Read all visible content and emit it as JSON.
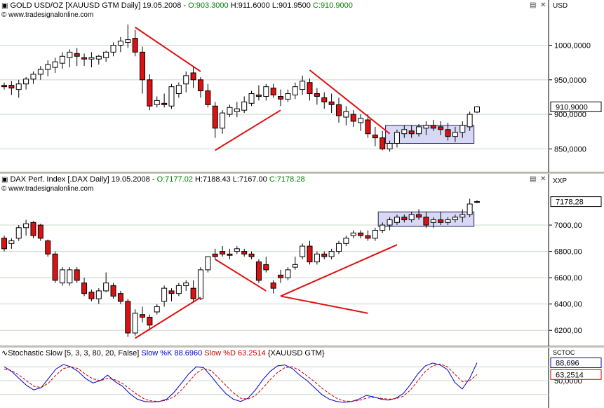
{
  "gold_pane": {
    "title_symbol": "GOLD USD/OZ [XAUUSD GTM  Daily] 19.05.2008 - ",
    "open": "O:903.3000",
    "hlc": " H:911.6000 L:901.9500 ",
    "close": "C:910.9000",
    "source": "© www.tradesignalonline.com",
    "axis_unit": "USD",
    "y_ticks": [
      "1000,0000",
      "950,0000",
      "900,0000",
      "850,0000"
    ],
    "last_price": "910,9000"
  },
  "dax_pane": {
    "title_symbol": "DAX Perf. Index [.DAX  Daily] 19.05.2008 - ",
    "open": "O:7177.02",
    "hlc": " H:7188.43 L:7167.00 ",
    "close": "C:7178.28",
    "source": "© www.tradesignalonline.com",
    "axis_unit": "XXP",
    "y_ticks": [
      "7000,00",
      "6800,00",
      "6600,00",
      "6400,00",
      "6200,00"
    ],
    "last_price": "7178,28"
  },
  "stoch_pane": {
    "name": "Stochastic Slow [5, 3, 3, 80, 20, False]",
    "k_label": "Slow %K 88.6960",
    "d_label": "Slow %D 63.2514",
    "symbol": "{XAUUSD GTM}",
    "axis_unit": "SCTOC",
    "y_tick": "50,0000",
    "k_value": "88,696",
    "d_value": "63,2514",
    "k_color": "#0000cc",
    "d_color": "#cc0000"
  },
  "chart_data": [
    {
      "type": "candlestick",
      "title": "GOLD USD/OZ [XAUUSD GTM  Daily] 19.05.2008",
      "ylim": [
        820,
        1035
      ],
      "ohlc": [
        [
          942,
          946,
          936,
          940
        ],
        [
          942,
          948,
          928,
          938
        ],
        [
          936,
          950,
          924,
          944
        ],
        [
          944,
          954,
          936,
          951
        ],
        [
          951,
          962,
          944,
          958
        ],
        [
          958,
          970,
          950,
          965
        ],
        [
          965,
          978,
          955,
          972
        ],
        [
          968,
          982,
          960,
          976
        ],
        [
          974,
          990,
          966,
          984
        ],
        [
          982,
          994,
          968,
          990
        ],
        [
          988,
          996,
          970,
          984
        ],
        [
          982,
          988,
          970,
          980
        ],
        [
          980,
          990,
          968,
          982
        ],
        [
          980,
          986,
          972,
          984
        ],
        [
          982,
          992,
          976,
          990
        ],
        [
          990,
          1004,
          984,
          1000
        ],
        [
          1000,
          1012,
          990,
          1006
        ],
        [
          1004,
          1030,
          996,
          1008
        ],
        [
          1010,
          1022,
          984,
          990
        ],
        [
          990,
          998,
          930,
          950
        ],
        [
          950,
          958,
          906,
          912
        ],
        [
          914,
          926,
          910,
          920
        ],
        [
          916,
          930,
          910,
          914
        ],
        [
          912,
          944,
          908,
          940
        ],
        [
          930,
          946,
          924,
          942
        ],
        [
          944,
          962,
          932,
          956
        ],
        [
          960,
          968,
          938,
          950
        ],
        [
          950,
          954,
          924,
          934
        ],
        [
          934,
          944,
          910,
          914
        ],
        [
          912,
          918,
          866,
          880
        ],
        [
          880,
          906,
          872,
          902
        ],
        [
          900,
          914,
          896,
          910
        ],
        [
          904,
          918,
          896,
          908
        ],
        [
          906,
          926,
          902,
          918
        ],
        [
          916,
          934,
          912,
          930
        ],
        [
          928,
          942,
          920,
          926
        ],
        [
          926,
          944,
          920,
          940
        ],
        [
          938,
          944,
          924,
          928
        ],
        [
          926,
          936,
          912,
          922
        ],
        [
          922,
          936,
          918,
          930
        ],
        [
          928,
          946,
          922,
          940
        ],
        [
          936,
          956,
          928,
          948
        ],
        [
          946,
          952,
          920,
          930
        ],
        [
          930,
          938,
          914,
          926
        ],
        [
          924,
          932,
          908,
          918
        ],
        [
          918,
          930,
          902,
          914
        ],
        [
          914,
          924,
          888,
          898
        ],
        [
          896,
          912,
          884,
          904
        ],
        [
          900,
          906,
          882,
          890
        ],
        [
          888,
          900,
          876,
          894
        ],
        [
          892,
          900,
          866,
          872
        ],
        [
          870,
          882,
          854,
          866
        ],
        [
          866,
          876,
          848,
          850
        ],
        [
          850,
          862,
          846,
          858
        ],
        [
          858,
          878,
          852,
          874
        ],
        [
          872,
          884,
          866,
          878
        ],
        [
          876,
          884,
          866,
          872
        ],
        [
          872,
          886,
          868,
          882
        ],
        [
          880,
          890,
          870,
          884
        ],
        [
          884,
          892,
          876,
          880
        ],
        [
          882,
          890,
          870,
          878
        ],
        [
          878,
          888,
          862,
          868
        ],
        [
          868,
          882,
          860,
          874
        ],
        [
          874,
          890,
          866,
          884
        ],
        [
          882,
          904,
          876,
          900
        ],
        [
          903.3,
          911.6,
          901.95,
          910.9
        ]
      ],
      "trendlines": "red",
      "range_box": [
        858,
        884
      ]
    },
    {
      "type": "candlestick",
      "title": "DAX Perf. Index [.DAX  Daily] 19.05.2008",
      "ylim": [
        6100,
        7240
      ],
      "ohlc": [
        [
          6900,
          6920,
          6800,
          6820
        ],
        [
          6860,
          6900,
          6820,
          6880
        ],
        [
          6900,
          7000,
          6880,
          6980
        ],
        [
          6980,
          7040,
          6920,
          7010
        ],
        [
          7020,
          7030,
          6900,
          6920
        ],
        [
          7000,
          7010,
          6880,
          6900
        ],
        [
          6880,
          6890,
          6760,
          6780
        ],
        [
          6780,
          6800,
          6560,
          6580
        ],
        [
          6560,
          6680,
          6540,
          6660
        ],
        [
          6560,
          6680,
          6540,
          6660
        ],
        [
          6660,
          6680,
          6560,
          6580
        ],
        [
          6560,
          6600,
          6460,
          6480
        ],
        [
          6490,
          6510,
          6420,
          6440
        ],
        [
          6440,
          6520,
          6400,
          6500
        ],
        [
          6500,
          6640,
          6490,
          6560
        ],
        [
          6540,
          6560,
          6440,
          6460
        ],
        [
          6480,
          6500,
          6400,
          6420
        ],
        [
          6420,
          6440,
          6150,
          6180
        ],
        [
          6180,
          6360,
          6160,
          6330
        ],
        [
          6320,
          6380,
          6260,
          6300
        ],
        [
          6300,
          6320,
          6200,
          6240
        ],
        [
          6340,
          6400,
          6320,
          6380
        ],
        [
          6420,
          6540,
          6380,
          6520
        ],
        [
          6500,
          6520,
          6420,
          6480
        ],
        [
          6480,
          6560,
          6460,
          6540
        ],
        [
          6540,
          6580,
          6500,
          6560
        ],
        [
          6520,
          6580,
          6420,
          6440
        ],
        [
          6440,
          6680,
          6430,
          6660
        ],
        [
          6660,
          6760,
          6640,
          6760
        ],
        [
          6780,
          6820,
          6740,
          6760
        ],
        [
          6800,
          6840,
          6760,
          6780
        ],
        [
          6780,
          6820,
          6740,
          6770
        ],
        [
          6800,
          6840,
          6780,
          6820
        ],
        [
          6800,
          6820,
          6760,
          6780
        ],
        [
          6780,
          6800,
          6740,
          6760
        ],
        [
          6720,
          6740,
          6560,
          6580
        ],
        [
          6700,
          6760,
          6640,
          6660
        ],
        [
          6560,
          6580,
          6480,
          6520
        ],
        [
          6620,
          6660,
          6560,
          6600
        ],
        [
          6600,
          6680,
          6580,
          6660
        ],
        [
          6680,
          6760,
          6660,
          6700
        ],
        [
          6760,
          6860,
          6740,
          6840
        ],
        [
          6840,
          6880,
          6700,
          6720
        ],
        [
          6720,
          6800,
          6700,
          6780
        ],
        [
          6780,
          6800,
          6740,
          6760
        ],
        [
          6760,
          6820,
          6740,
          6800
        ],
        [
          6800,
          6880,
          6780,
          6860
        ],
        [
          6860,
          6920,
          6840,
          6900
        ],
        [
          6920,
          6960,
          6900,
          6940
        ],
        [
          6940,
          6960,
          6900,
          6920
        ],
        [
          6920,
          6960,
          6880,
          6900
        ],
        [
          6900,
          6980,
          6880,
          6960
        ],
        [
          6960,
          7020,
          6940,
          7000
        ],
        [
          7000,
          7060,
          6960,
          7040
        ],
        [
          7020,
          7080,
          7000,
          7060
        ],
        [
          7060,
          7080,
          7020,
          7040
        ],
        [
          7040,
          7100,
          7020,
          7080
        ],
        [
          7080,
          7120,
          7040,
          7060
        ],
        [
          7060,
          7100,
          6980,
          7000
        ],
        [
          7020,
          7060,
          6980,
          7040
        ],
        [
          7040,
          7100,
          7000,
          7020
        ],
        [
          7020,
          7060,
          7000,
          7040
        ],
        [
          7040,
          7080,
          7020,
          7060
        ],
        [
          7060,
          7120,
          7020,
          7080
        ],
        [
          7080,
          7200,
          7060,
          7160
        ],
        [
          7177.02,
          7188.43,
          7167.0,
          7178.28
        ]
      ],
      "trendlines": "red",
      "range_box": [
        6990,
        7100
      ]
    },
    {
      "type": "line",
      "title": "Stochastic Slow [5, 3, 3, 80, 20, False]",
      "ylim": [
        0,
        100
      ],
      "series": [
        {
          "name": "Slow %K",
          "values": [
            80,
            70,
            55,
            40,
            30,
            35,
            55,
            75,
            85,
            80,
            70,
            55,
            45,
            50,
            62,
            48,
            38,
            22,
            10,
            5,
            4,
            5,
            10,
            25,
            45,
            65,
            80,
            78,
            60,
            40,
            22,
            10,
            5,
            12,
            30,
            52,
            70,
            82,
            84,
            76,
            62,
            50,
            35,
            20,
            10,
            5,
            3,
            5,
            10,
            18,
            15,
            10,
            8,
            12,
            22,
            42,
            65,
            82,
            88,
            84,
            74,
            46,
            32,
            55,
            88.696
          ]
        },
        {
          "name": "Slow %D",
          "values": [
            75,
            72,
            62,
            50,
            38,
            35,
            45,
            62,
            76,
            80,
            76,
            64,
            54,
            50,
            55,
            52,
            44,
            32,
            20,
            10,
            6,
            5,
            8,
            15,
            30,
            48,
            66,
            76,
            72,
            56,
            40,
            24,
            12,
            10,
            18,
            34,
            52,
            68,
            78,
            80,
            72,
            60,
            48,
            34,
            22,
            12,
            6,
            5,
            7,
            12,
            14,
            12,
            10,
            11,
            16,
            30,
            50,
            70,
            82,
            86,
            80,
            64,
            48,
            50,
            63.2514
          ]
        }
      ]
    }
  ]
}
